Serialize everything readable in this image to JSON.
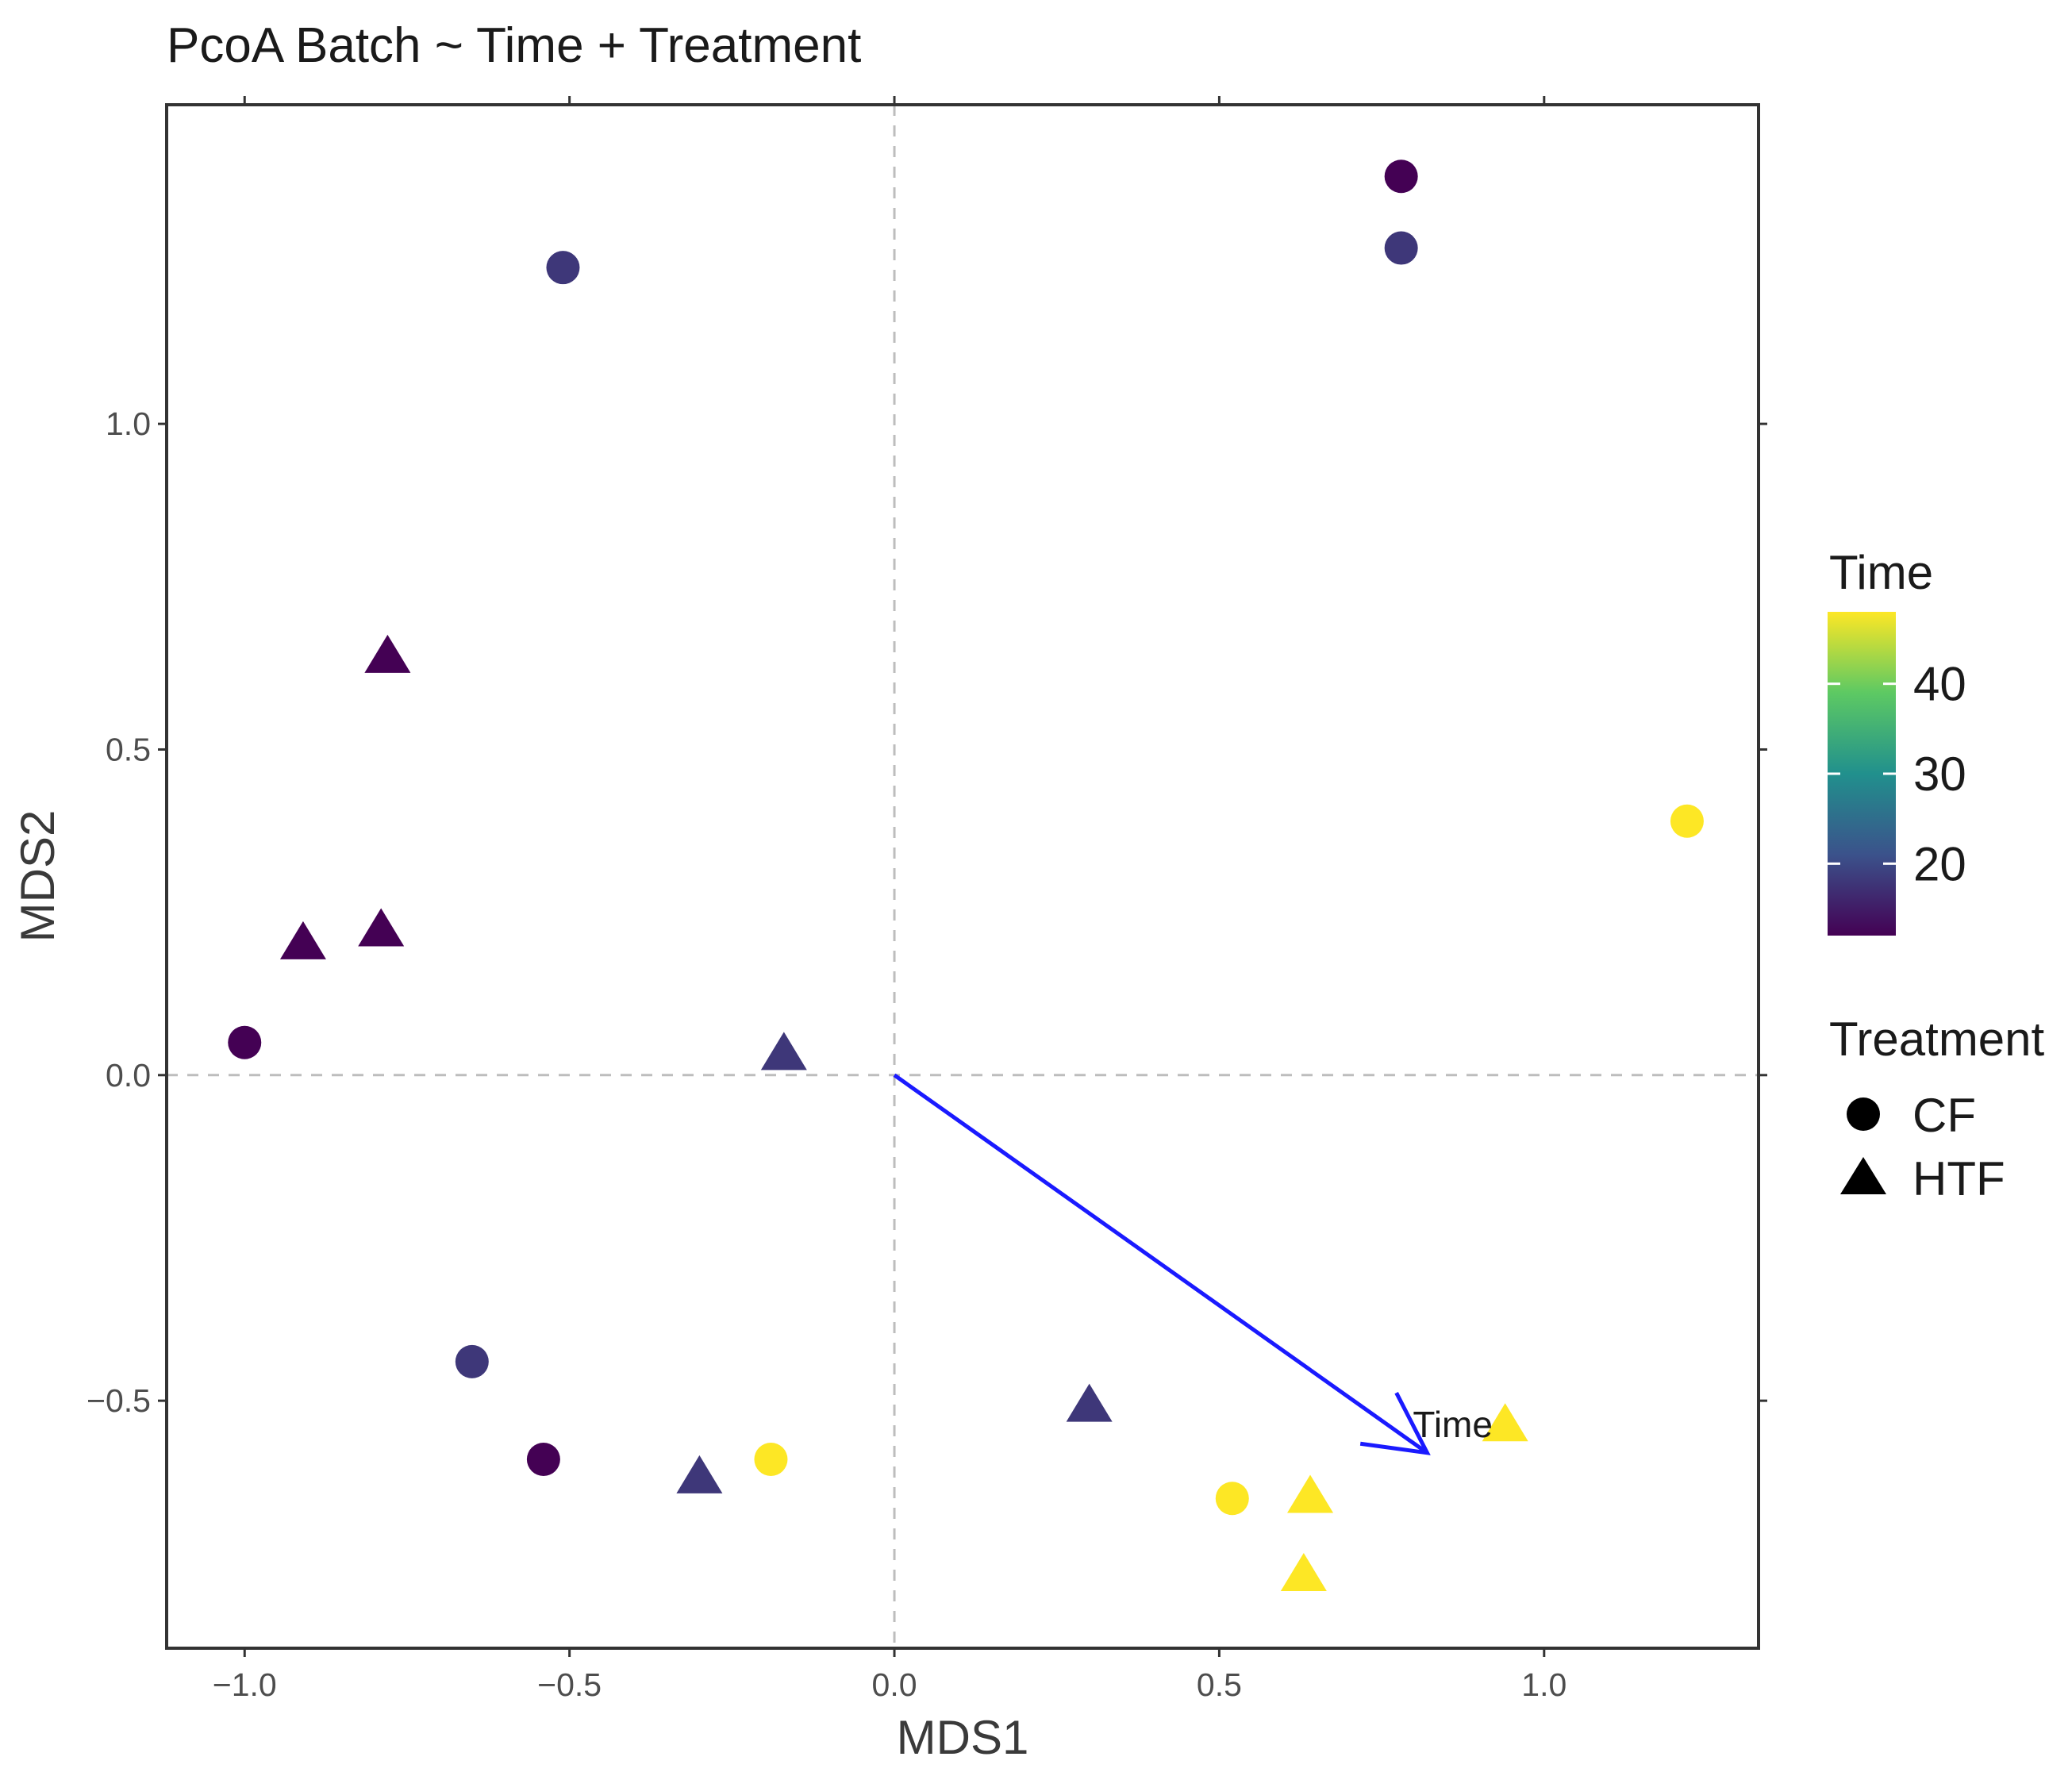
{
  "chart_data": {
    "type": "scatter",
    "title": "PcoA Batch ~ Time + Treatment",
    "xlabel": "MDS1",
    "ylabel": "MDS2",
    "xlim": [
      -1.12,
      1.33
    ],
    "ylim": [
      -0.88,
      1.49
    ],
    "xticks": [
      -1.0,
      -0.5,
      0.0,
      0.5,
      1.0
    ],
    "xtick_labels": [
      "−1.0",
      "−0.5",
      "0.0",
      "0.5",
      "1.0"
    ],
    "yticks": [
      -0.5,
      0.0,
      0.5,
      1.0
    ],
    "ytick_labels": [
      "−0.5",
      "0.0",
      "0.5",
      "1.0"
    ],
    "reference_lines": {
      "x": 0,
      "y": 0,
      "style": "dashed"
    },
    "color_legend": {
      "title": "Time",
      "range": [
        12,
        48
      ],
      "ticks": [
        20,
        30,
        40
      ],
      "tick_labels": [
        "20",
        "30",
        "40"
      ],
      "colors": [
        "#440154",
        "#3b528b",
        "#21908d",
        "#5dc963",
        "#fde725"
      ]
    },
    "shape_legend": {
      "title": "Treatment",
      "items": [
        {
          "label": "CF",
          "shape": "circle"
        },
        {
          "label": "HTF",
          "shape": "triangle"
        }
      ]
    },
    "points": [
      {
        "x": -0.51,
        "y": 1.24,
        "time": 18,
        "treatment": "CF"
      },
      {
        "x": 0.78,
        "y": 1.38,
        "time": 12,
        "treatment": "CF"
      },
      {
        "x": 0.78,
        "y": 1.27,
        "time": 18,
        "treatment": "CF"
      },
      {
        "x": 1.22,
        "y": 0.39,
        "time": 48,
        "treatment": "CF"
      },
      {
        "x": -1.0,
        "y": 0.05,
        "time": 12,
        "treatment": "CF"
      },
      {
        "x": -0.65,
        "y": -0.44,
        "time": 18,
        "treatment": "CF"
      },
      {
        "x": -0.54,
        "y": -0.59,
        "time": 12,
        "treatment": "CF"
      },
      {
        "x": -0.19,
        "y": -0.59,
        "time": 48,
        "treatment": "CF"
      },
      {
        "x": 0.52,
        "y": -0.65,
        "time": 48,
        "treatment": "CF"
      },
      {
        "x": -0.78,
        "y": 0.64,
        "time": 12,
        "treatment": "HTF"
      },
      {
        "x": -0.91,
        "y": 0.2,
        "time": 12,
        "treatment": "HTF"
      },
      {
        "x": -0.79,
        "y": 0.22,
        "time": 12,
        "treatment": "HTF"
      },
      {
        "x": -0.17,
        "y": 0.03,
        "time": 18,
        "treatment": "HTF"
      },
      {
        "x": 0.3,
        "y": -0.51,
        "time": 18,
        "treatment": "HTF"
      },
      {
        "x": -0.3,
        "y": -0.62,
        "time": 18,
        "treatment": "HTF"
      },
      {
        "x": 0.94,
        "y": -0.54,
        "time": 48,
        "treatment": "HTF"
      },
      {
        "x": 0.64,
        "y": -0.65,
        "time": 48,
        "treatment": "HTF"
      },
      {
        "x": 0.63,
        "y": -0.77,
        "time": 48,
        "treatment": "HTF"
      }
    ],
    "vector": {
      "label": "Time",
      "x0": 0,
      "y0": 0,
      "x1": 0.82,
      "y1": -0.58,
      "color": "#1a1aff"
    }
  }
}
